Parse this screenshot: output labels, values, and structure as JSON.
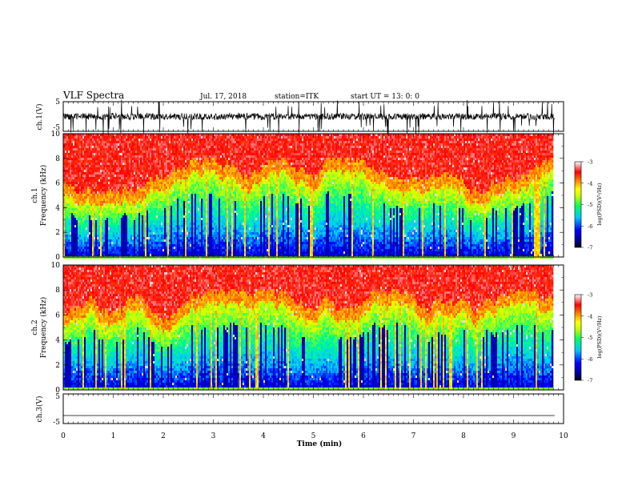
{
  "header": {
    "title": "VLF Spectra",
    "date": "Jul. 17, 2018",
    "station": "station=ITK",
    "start_ut": "start UT = 13: 0: 0"
  },
  "chart_data": [
    {
      "type": "line",
      "ylabel": "ch.1(V)",
      "ylim": [
        -5,
        5
      ],
      "y_ticks": [
        "5",
        "-5"
      ],
      "xlim": [
        0,
        10
      ],
      "description_level": 0
    },
    {
      "type": "heatmap",
      "ylabel": "ch.1\nFrequency (kHz)",
      "ylabel_lines": [
        "ch.1",
        "Frequency (kHz)"
      ],
      "ylim": [
        0,
        10
      ],
      "y_ticks": [
        "0",
        "2",
        "4",
        "6",
        "8",
        "10"
      ],
      "xlim": [
        0,
        10
      ],
      "colorbar": {
        "label": "log(PSD)(V²/Hz)",
        "range": [
          -7,
          -3
        ],
        "ticks": [
          "-3",
          "-4",
          "-5",
          "-6",
          "-7"
        ]
      }
    },
    {
      "type": "heatmap",
      "ylabel_lines": [
        "ch.2",
        "Frequency (kHz)"
      ],
      "ylim": [
        0,
        10
      ],
      "y_ticks": [
        "0",
        "2",
        "4",
        "6",
        "8",
        "10"
      ],
      "xlim": [
        0,
        10
      ],
      "colorbar": {
        "label": "log(PSD)(V²/Hz)",
        "range": [
          -7,
          -3
        ],
        "ticks": [
          "-3",
          "-4",
          "-5",
          "-6",
          "-7"
        ]
      }
    },
    {
      "type": "line",
      "ylabel": "ch.3(V)",
      "ylim": [
        -5,
        5
      ],
      "y_ticks": [
        "5",
        "-5"
      ],
      "xlim": [
        0,
        10
      ],
      "level": -2.3
    }
  ],
  "x_axis": {
    "label": "Time (min)",
    "ticks": [
      "0",
      "1",
      "2",
      "3",
      "4",
      "5",
      "6",
      "7",
      "8",
      "9",
      "10"
    ],
    "data_end": 9.82
  },
  "colors": {
    "colormap": [
      "#000080",
      "#0000ff",
      "#00c8ff",
      "#00ff80",
      "#c8ff00",
      "#ffff00",
      "#ff8000",
      "#ff0000",
      "#ffffff"
    ]
  }
}
